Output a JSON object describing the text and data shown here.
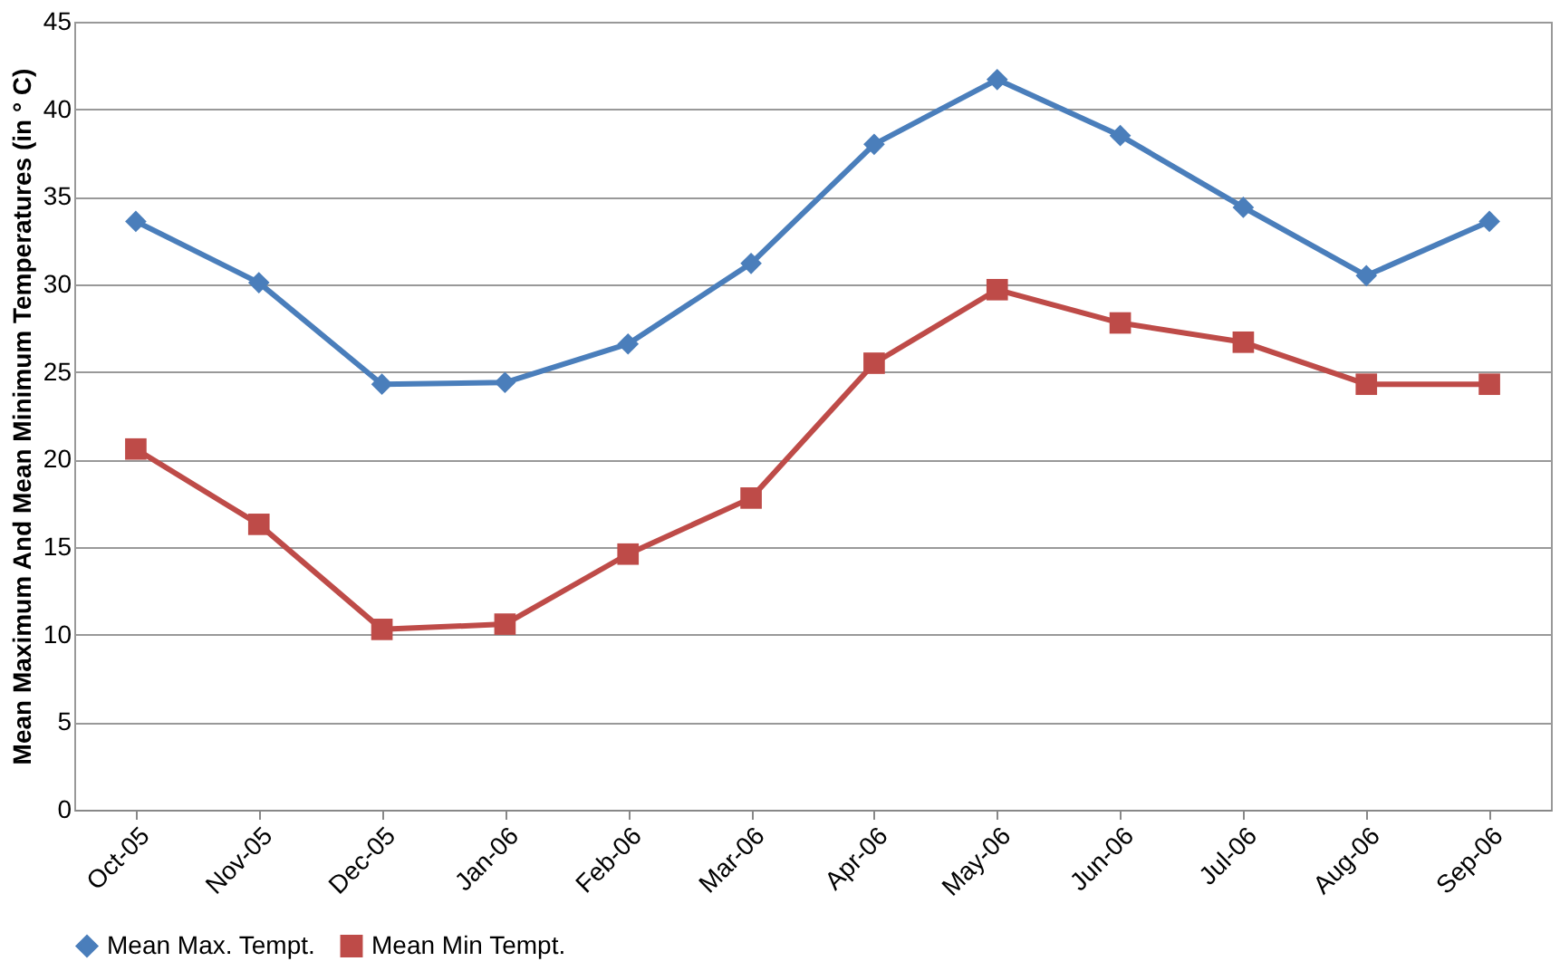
{
  "chart_data": {
    "type": "line",
    "ylabel": "Mean Maximum And Mean Minimum Temperatures (in ° C)",
    "categories": [
      "Oct-05",
      "Nov-05",
      "Dec-05",
      "Jan-06",
      "Feb-06",
      "Mar-06",
      "Apr-06",
      "May-06",
      "Jun-06",
      "Jul-06",
      "Aug-06",
      "Sep-06"
    ],
    "series": [
      {
        "name": "Mean Max. Tempt.",
        "color": "#4a7ebb",
        "marker": "diamond",
        "values": [
          33.6,
          30.1,
          24.3,
          24.4,
          26.6,
          31.2,
          38.0,
          41.7,
          38.5,
          34.4,
          30.5,
          33.6
        ]
      },
      {
        "name": "Mean Min Tempt.",
        "color": "#be4b48",
        "marker": "square",
        "values": [
          20.6,
          16.3,
          10.3,
          10.6,
          14.6,
          17.8,
          25.5,
          29.7,
          27.8,
          26.7,
          24.3,
          24.3
        ]
      }
    ],
    "ylim": [
      0,
      45
    ],
    "yticks": [
      0,
      5,
      10,
      15,
      20,
      25,
      30,
      35,
      40,
      45
    ],
    "grid": "y",
    "legend": "bottom"
  }
}
